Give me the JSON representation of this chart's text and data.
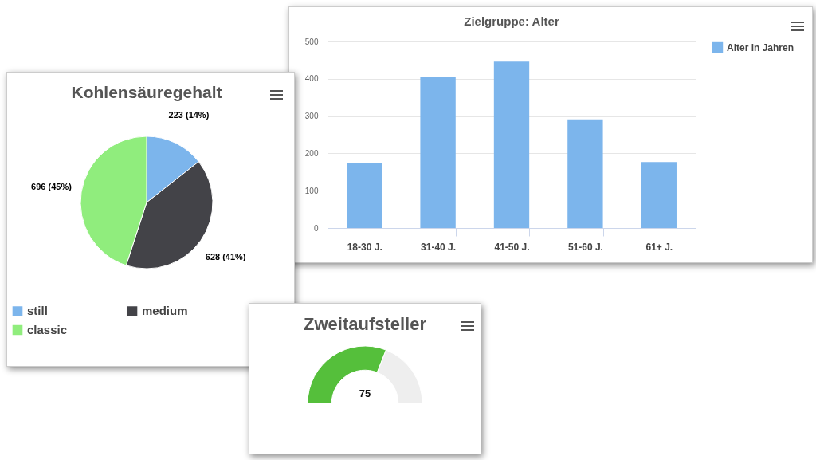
{
  "chart_data": [
    {
      "type": "bar",
      "title": "Zielgruppe: Alter",
      "categories": [
        "18-30 J.",
        "31-40 J.",
        "41-50 J.",
        "51-60 J.",
        "61+ J."
      ],
      "series": [
        {
          "name": "Alter in Jahren",
          "color": "#7cb5ec",
          "values": [
            174,
            405,
            446,
            291,
            177
          ]
        }
      ],
      "ylim": [
        0,
        500
      ],
      "yticks": [
        0,
        100,
        200,
        300,
        400,
        500
      ],
      "grid": "y",
      "legend": "right"
    },
    {
      "type": "pie",
      "title": "Kohlensäuregehalt",
      "categories": [
        "still",
        "medium",
        "classic"
      ],
      "values": [
        223,
        628,
        696
      ],
      "colors": [
        "#7cb5ec",
        "#434348",
        "#90ed7d"
      ],
      "value_labels": [
        "223 (14%)",
        "628 (41%)",
        "696 (45%)"
      ],
      "legend": "bottom"
    },
    {
      "type": "donut",
      "title": "Zweitaufsteller",
      "categories": [
        null,
        null
      ],
      "values": [
        62,
        38
      ],
      "colors": [
        "#55bf3b",
        "#eeeeee"
      ],
      "annotations": [
        "75"
      ]
    }
  ]
}
